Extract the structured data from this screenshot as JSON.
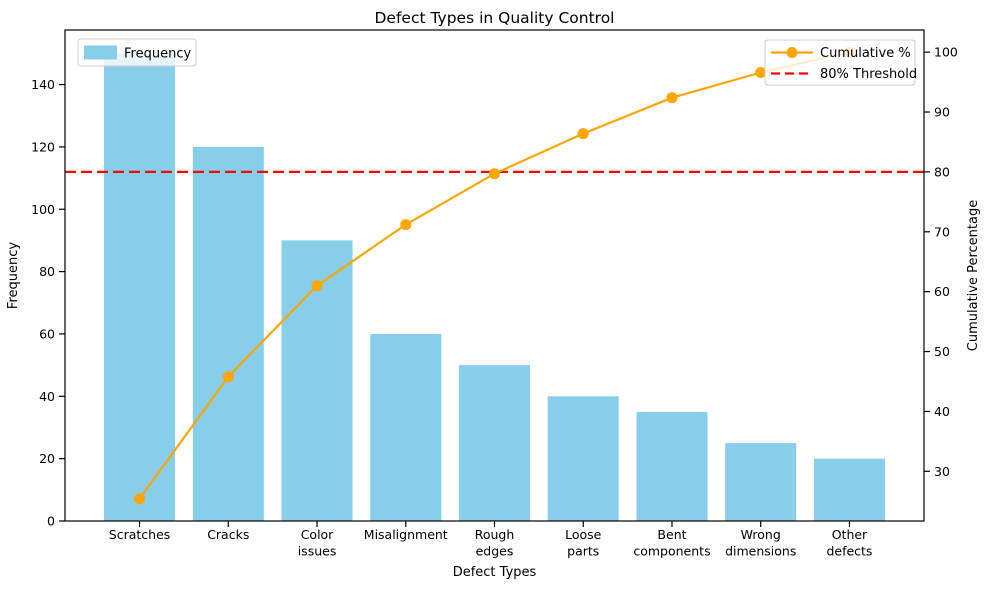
{
  "chart_data": {
    "type": "bar",
    "subtype": "pareto",
    "title": "Defect Types in Quality Control",
    "xlabel": "Defect Types",
    "ylabel_left": "Frequency",
    "ylabel_right": "Cumulative Percentage",
    "categories": [
      "Scratches",
      "Cracks",
      "Color\nissues",
      "Misalignment",
      "Rough\nedges",
      "Loose\nparts",
      "Bent\ncomponents",
      "Wrong\ndimensions",
      "Other\ndefects"
    ],
    "bar_series": {
      "name": "Frequency",
      "color": "#87CEEB",
      "values": [
        150,
        120,
        90,
        60,
        50,
        40,
        35,
        25,
        20
      ]
    },
    "line_series": {
      "name": "Cumulative %",
      "color": "#FFA500",
      "marker": "circle",
      "values": [
        25.4,
        45.8,
        61.0,
        71.2,
        79.7,
        86.4,
        92.4,
        96.6,
        100.0
      ]
    },
    "threshold_line": {
      "name": "80% Threshold",
      "color": "#FF0000",
      "style": "dashed",
      "value": 80
    },
    "axes": {
      "xlim": [
        -0.84,
        8.84
      ],
      "bar_width_units": 0.8,
      "ylim_left": [
        0,
        157.5
      ],
      "ylim_right": [
        21.7,
        103.7
      ],
      "yticks_left": [
        0,
        20,
        40,
        60,
        80,
        100,
        120,
        140
      ],
      "yticks_right": [
        30,
        40,
        50,
        60,
        70,
        80,
        90,
        100
      ],
      "grid": false
    },
    "legends": [
      {
        "position": "upper-left",
        "entries": [
          "Frequency"
        ]
      },
      {
        "position": "upper-right",
        "entries": [
          "Cumulative %",
          "80% Threshold"
        ]
      }
    ]
  }
}
